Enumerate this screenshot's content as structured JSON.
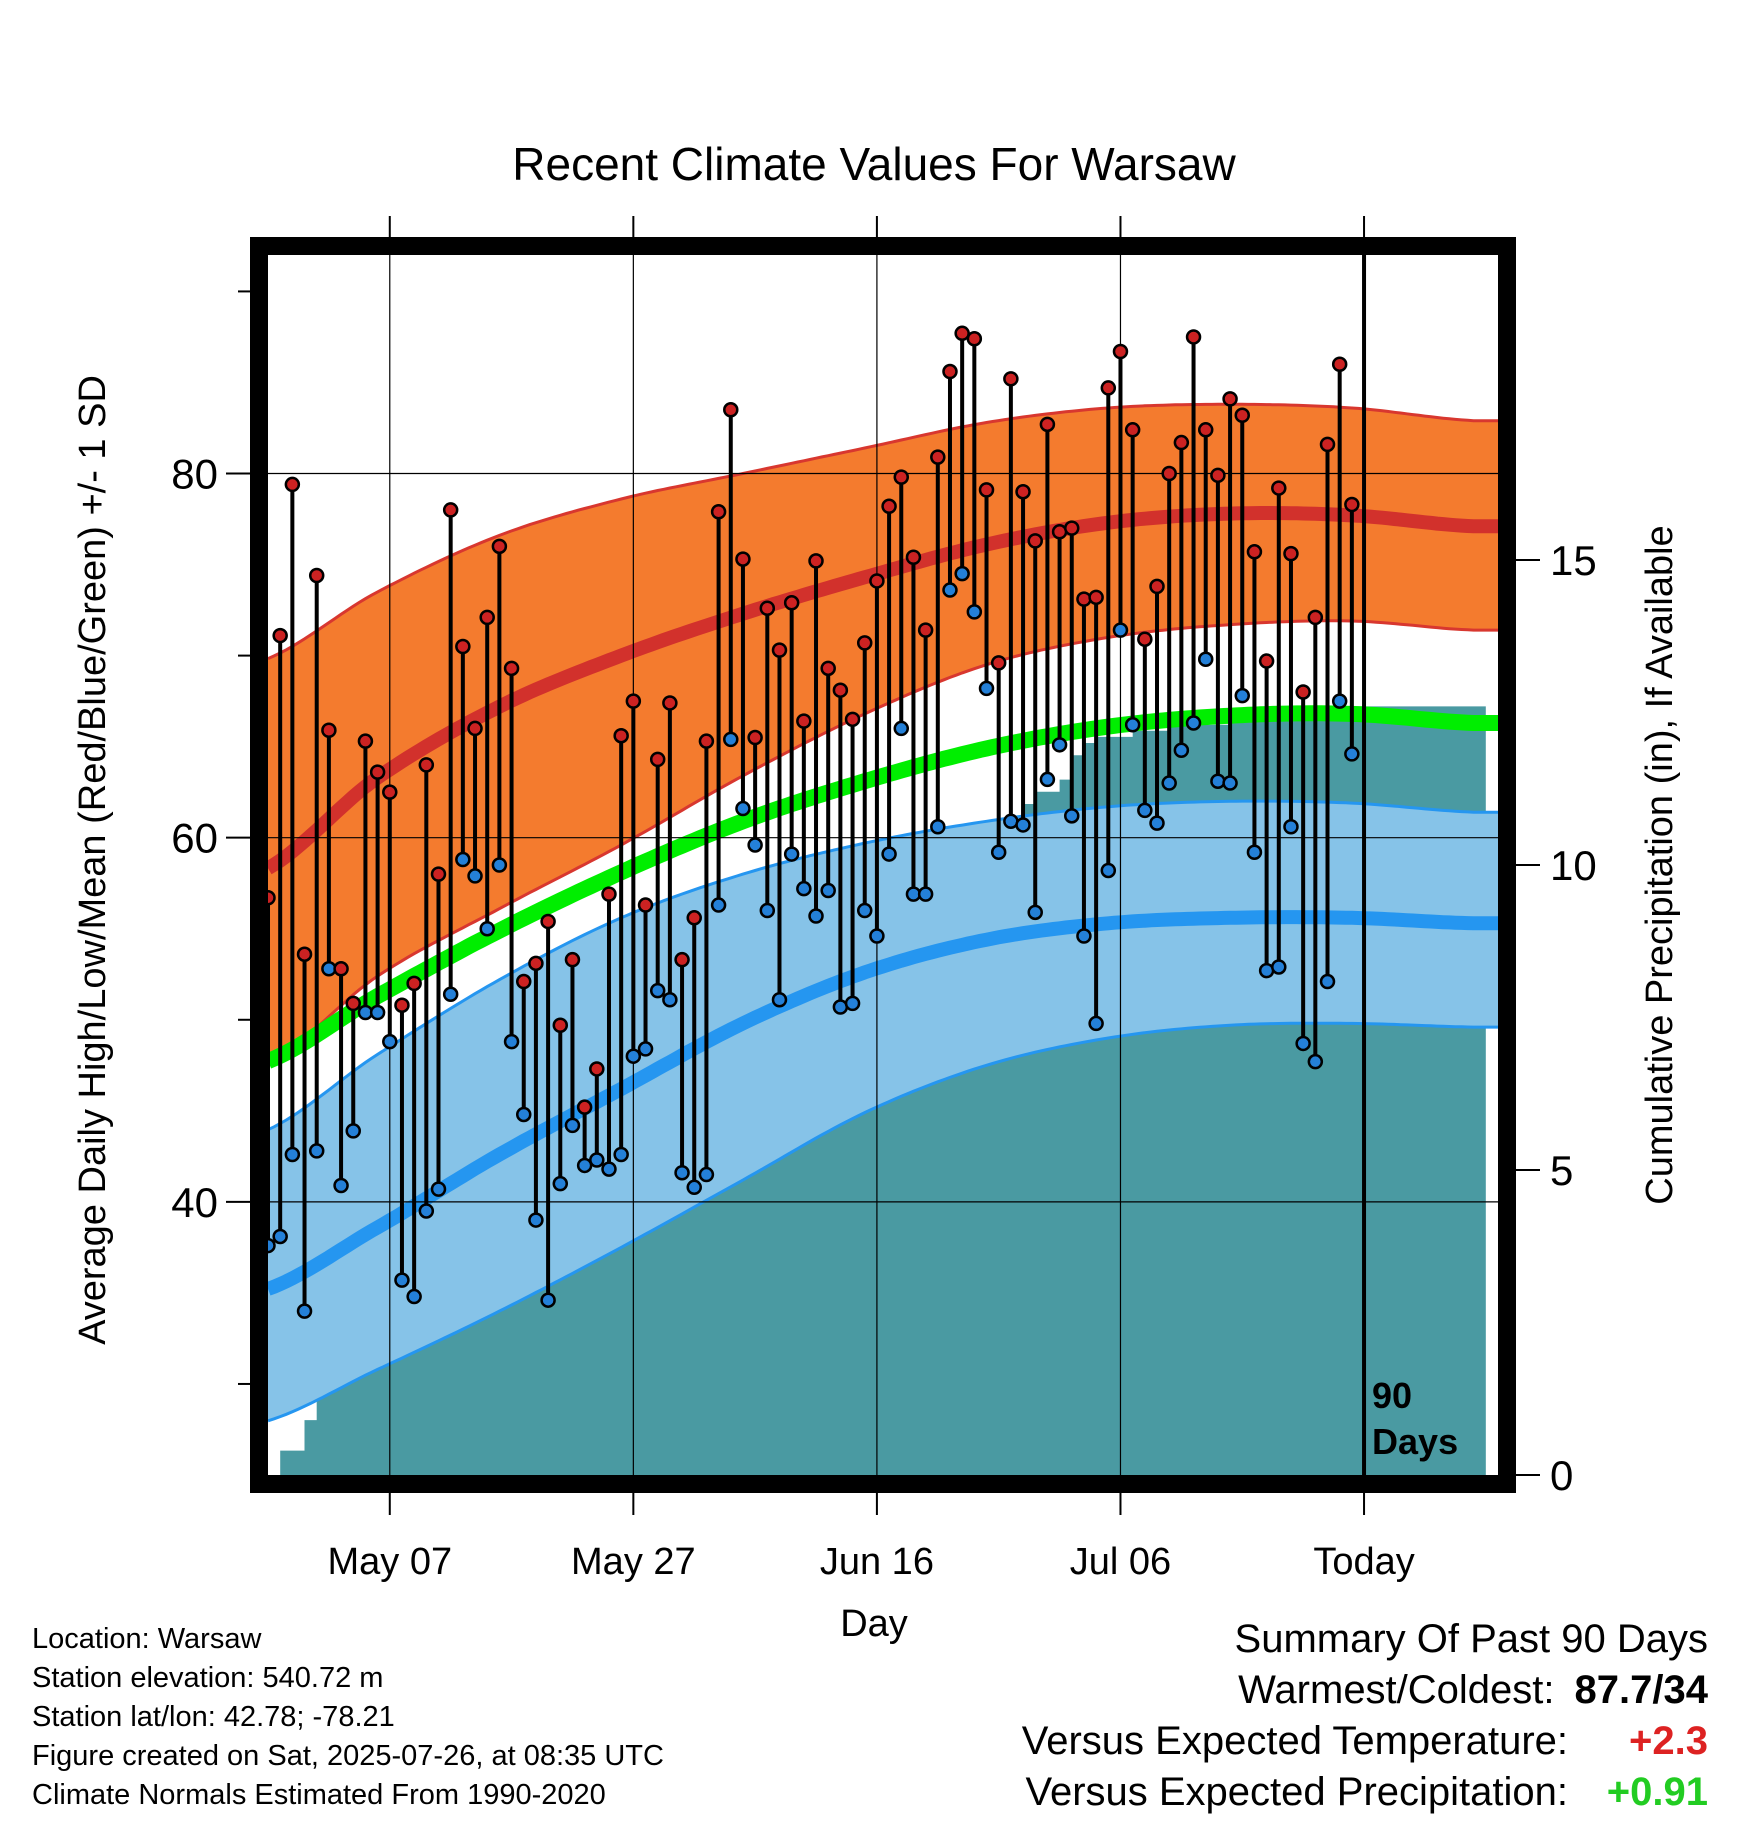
{
  "chart_data": {
    "type": "line",
    "title": "Recent Climate Values For Warsaw",
    "xlabel": "Day",
    "ylabel": "Average Daily High/Low/Mean (Red/Blue/Green) +/- 1 SD",
    "y2label": "Cumulative Precipitation (in), If Available",
    "ylim": [
      25,
      92
    ],
    "y2lim": [
      0,
      20
    ],
    "yticks": [
      40,
      60,
      80
    ],
    "y2ticks": [
      0,
      5,
      10,
      15
    ],
    "xlim": [
      0,
      103
    ],
    "x_ticks": [
      {
        "day": 11,
        "label": "May 07"
      },
      {
        "day": 31,
        "label": "May 27"
      },
      {
        "day": 51,
        "label": "Jun 16"
      },
      {
        "day": 71,
        "label": "Jul 06"
      },
      {
        "day": 91,
        "label": "Today"
      }
    ],
    "today_day": 91,
    "today_note": [
      "90",
      "Days"
    ],
    "grid": true,
    "colors": {
      "high_band": "#f47b2e",
      "high_mean": "#d2312c",
      "high_edge": "#d8372f",
      "low_band": "#86c3e8",
      "low_mean": "#2596f0",
      "low_edge": "#2596f0",
      "mean_line": "#00ee00",
      "precip": "#4a9aa2",
      "hi_point": "#cc2222",
      "lo_point": "#2480d8"
    },
    "normals": {
      "days": [
        0,
        10,
        20,
        30,
        40,
        50,
        60,
        70,
        80,
        90,
        100
      ],
      "high_mean": [
        58.0,
        63.3,
        67.2,
        70.0,
        72.3,
        74.3,
        76.1,
        77.3,
        77.8,
        77.7,
        77.1
      ],
      "high_upper": [
        69.6,
        73.5,
        76.6,
        78.6,
        80.0,
        81.4,
        82.8,
        83.6,
        83.8,
        83.6,
        82.9
      ],
      "high_lower": [
        47.2,
        52.4,
        56.1,
        59.6,
        63.4,
        66.8,
        69.5,
        71.0,
        71.7,
        71.9,
        71.4
      ],
      "mean": [
        47.5,
        51.3,
        54.9,
        58.1,
        60.9,
        63.1,
        64.9,
        66.1,
        66.7,
        66.8,
        66.3
      ],
      "low_mean": [
        35.0,
        38.6,
        42.6,
        46.2,
        49.8,
        52.6,
        54.4,
        55.3,
        55.6,
        55.6,
        55.3
      ],
      "low_upper": [
        43.7,
        48.1,
        52.2,
        55.6,
        58.0,
        59.7,
        60.9,
        61.7,
        62.0,
        61.9,
        61.4
      ],
      "low_lower": [
        27.8,
        30.8,
        34.0,
        37.5,
        41.2,
        44.9,
        47.5,
        49.0,
        49.7,
        49.8,
        49.6
      ]
    },
    "daily": {
      "start_day": 1,
      "highs": [
        56.7,
        71.1,
        79.4,
        53.6,
        74.4,
        65.9,
        52.8,
        50.9,
        65.3,
        63.6,
        62.5,
        50.8,
        52.0,
        64.0,
        58.0,
        78.0,
        70.5,
        66.0,
        72.1,
        76.0,
        69.3,
        52.1,
        53.1,
        55.4,
        49.7,
        53.3,
        45.2,
        47.3,
        56.9,
        65.6,
        67.5,
        56.3,
        64.3,
        67.4,
        53.3,
        55.6,
        65.3,
        77.9,
        83.5,
        75.3,
        65.5,
        72.6,
        70.3,
        72.9,
        66.4,
        75.2,
        69.3,
        68.1,
        66.5,
        70.7,
        74.1,
        78.2,
        79.8,
        75.4,
        71.4,
        80.9,
        85.6,
        87.7,
        87.4,
        79.1,
        69.6,
        85.2,
        79.0,
        76.3,
        82.7,
        76.8,
        77.0,
        73.1,
        73.2,
        84.7,
        86.7,
        82.4,
        70.9,
        73.8,
        80.0,
        81.7,
        87.5,
        82.4,
        79.9,
        84.1,
        83.2,
        75.7,
        69.7,
        79.2,
        75.6,
        68.0,
        72.1,
        81.6,
        86.0,
        78.3
      ],
      "lows": [
        37.6,
        38.1,
        42.6,
        34.0,
        42.8,
        52.8,
        40.9,
        43.9,
        50.4,
        50.4,
        48.8,
        35.7,
        34.8,
        39.5,
        40.7,
        51.4,
        58.8,
        57.9,
        55.0,
        58.5,
        48.8,
        44.8,
        39.0,
        34.6,
        41.0,
        44.2,
        42.0,
        42.3,
        41.8,
        42.6,
        48.0,
        48.4,
        51.6,
        51.1,
        41.6,
        40.8,
        41.5,
        56.3,
        65.4,
        61.6,
        59.6,
        56.0,
        51.1,
        59.1,
        57.2,
        55.7,
        57.1,
        50.7,
        50.9,
        56.0,
        54.6,
        59.1,
        66.0,
        56.9,
        56.9,
        60.6,
        73.6,
        74.5,
        72.4,
        68.2,
        59.2,
        60.9,
        60.7,
        55.9,
        63.2,
        65.1,
        61.2,
        54.6,
        49.8,
        58.2,
        71.4,
        66.2,
        61.5,
        60.8,
        63.0,
        64.8,
        66.3,
        69.8,
        63.1,
        63.0,
        67.8,
        59.2,
        52.7,
        52.9,
        60.6,
        48.7,
        47.7,
        52.1,
        67.5,
        64.6
      ]
    },
    "precip_cum": [
      [
        1,
        0.0
      ],
      [
        2,
        0.4
      ],
      [
        3,
        0.4
      ],
      [
        4,
        0.9
      ],
      [
        5,
        1.6
      ],
      [
        6,
        1.6
      ],
      [
        7,
        2.0
      ],
      [
        8,
        2.1
      ],
      [
        9,
        3.6
      ],
      [
        10,
        4.1
      ],
      [
        11,
        4.3
      ],
      [
        17,
        4.3
      ],
      [
        18,
        4.6
      ],
      [
        19,
        5.1
      ],
      [
        20,
        5.4
      ],
      [
        23,
        5.4
      ],
      [
        24,
        5.9
      ],
      [
        25,
        6.2
      ],
      [
        26,
        6.4
      ],
      [
        27,
        6.7
      ],
      [
        29,
        6.8
      ],
      [
        31,
        7.0
      ],
      [
        32,
        7.3
      ],
      [
        33,
        7.3
      ],
      [
        34,
        7.4
      ],
      [
        35,
        7.5
      ],
      [
        39,
        7.5
      ],
      [
        40,
        8.2
      ],
      [
        42,
        8.3
      ],
      [
        43,
        9.0
      ],
      [
        44,
        9.3
      ],
      [
        45,
        9.4
      ],
      [
        46,
        9.4
      ],
      [
        47,
        9.6
      ],
      [
        48,
        9.7
      ],
      [
        49,
        9.7
      ],
      [
        50,
        9.7
      ],
      [
        51,
        9.7
      ],
      [
        53,
        9.9
      ],
      [
        54,
        10.0
      ],
      [
        57,
        10.0
      ],
      [
        58,
        10.1
      ],
      [
        60,
        10.1
      ],
      [
        61,
        10.4
      ],
      [
        62,
        10.5
      ],
      [
        63,
        11.0
      ],
      [
        64,
        11.2
      ],
      [
        65,
        11.2
      ],
      [
        66,
        11.4
      ],
      [
        67,
        11.8
      ],
      [
        68,
        12.0
      ],
      [
        69,
        12.1
      ],
      [
        72,
        12.2
      ],
      [
        73,
        12.2
      ],
      [
        75,
        12.3
      ],
      [
        77,
        12.3
      ],
      [
        80,
        12.4
      ],
      [
        84,
        12.5
      ],
      [
        86,
        12.6
      ],
      [
        89,
        12.6
      ],
      [
        91,
        12.6
      ],
      [
        101,
        12.6
      ]
    ]
  },
  "info": {
    "location": "Location: Warsaw",
    "elevation": "Station elevation: 540.72 m",
    "latlon": "Station lat/lon: 42.78; -78.21",
    "created": "Figure created on Sat, 2025-07-26, at 08:35 UTC",
    "normals": "Climate Normals Estimated From 1990-2020"
  },
  "summary": {
    "title": "Summary Of Past 90 Days",
    "warmest_label": "Warmest/Coldest:",
    "warmest_value": "87.7/34",
    "temp_label": "Versus Expected Temperature:",
    "temp_value": "+2.3",
    "temp_color": "#dd2222",
    "precip_label": "Versus Expected Precipitation:",
    "precip_value": "+0.91",
    "precip_color": "#22cc22"
  }
}
